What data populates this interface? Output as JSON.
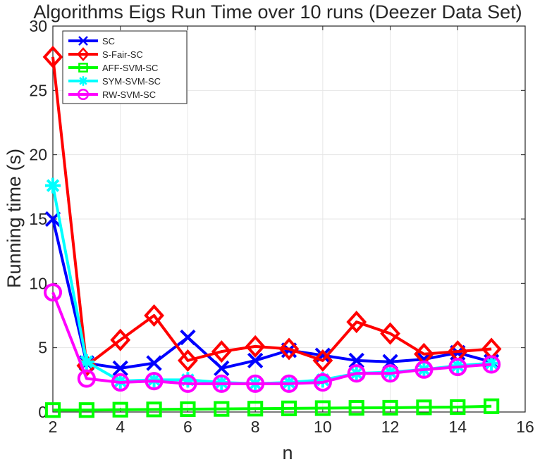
{
  "chart_data": {
    "type": "line",
    "title": "Algorithms Eigs Run Time over 10 runs (Deezer Data Set)",
    "xlabel": "n",
    "ylabel": "Running time (s)",
    "xlim": [
      2,
      16
    ],
    "ylim": [
      0,
      30
    ],
    "xticks": [
      2,
      4,
      6,
      8,
      10,
      12,
      14,
      16
    ],
    "yticks": [
      0,
      5,
      10,
      15,
      20,
      25,
      30
    ],
    "grid": true,
    "legend_position": "top-left",
    "x": [
      2,
      3,
      4,
      5,
      6,
      7,
      8,
      9,
      10,
      11,
      12,
      13,
      14,
      15
    ],
    "series": [
      {
        "name": "SC",
        "color": "#0000ff",
        "marker": "x",
        "values": [
          15.0,
          3.8,
          3.4,
          3.8,
          5.8,
          3.4,
          4.0,
          4.8,
          4.4,
          4.0,
          3.9,
          4.1,
          4.6,
          3.9
        ]
      },
      {
        "name": "S-Fair-SC",
        "color": "#ff0000",
        "marker": "diamond",
        "values": [
          27.6,
          3.6,
          5.6,
          7.5,
          4.0,
          4.7,
          5.1,
          4.9,
          4.0,
          7.0,
          6.1,
          4.5,
          4.7,
          4.9
        ]
      },
      {
        "name": "AFF-SVM-SC",
        "color": "#00ff00",
        "marker": "square",
        "values": [
          0.15,
          0.15,
          0.18,
          0.2,
          0.22,
          0.24,
          0.26,
          0.28,
          0.3,
          0.32,
          0.33,
          0.36,
          0.38,
          0.45
        ]
      },
      {
        "name": "SYM-SVM-SC",
        "color": "#00ffff",
        "marker": "asterisk",
        "values": [
          17.6,
          3.9,
          2.4,
          2.5,
          2.5,
          2.3,
          2.2,
          2.3,
          2.5,
          3.0,
          3.1,
          3.3,
          3.6,
          3.8
        ]
      },
      {
        "name": "RW-SVM-SC",
        "color": "#ff00ff",
        "marker": "circle",
        "values": [
          9.3,
          2.6,
          2.3,
          2.4,
          2.2,
          2.2,
          2.2,
          2.2,
          2.3,
          3.0,
          3.0,
          3.3,
          3.5,
          3.7
        ]
      }
    ]
  }
}
